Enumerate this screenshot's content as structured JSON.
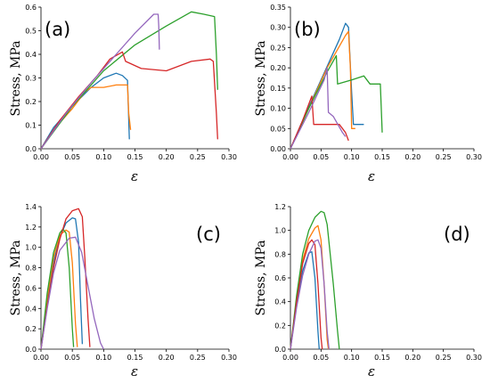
{
  "chart_data": [
    {
      "type": "line",
      "panel_label": "(a)",
      "xlabel": "ε",
      "ylabel": "Stress, MPa",
      "xlim": [
        0,
        0.3
      ],
      "ylim": [
        0,
        0.6
      ],
      "xticks": [
        "0.00",
        "0.05",
        "0.10",
        "0.15",
        "0.20",
        "0.25",
        "0.30"
      ],
      "yticks": [
        "0.0",
        "0.1",
        "0.2",
        "0.3",
        "0.4",
        "0.5",
        "0.6"
      ],
      "grid": false,
      "series": [
        {
          "color": "#1f77b4",
          "points": [
            [
              0,
              0
            ],
            [
              0.02,
              0.09
            ],
            [
              0.05,
              0.18
            ],
            [
              0.08,
              0.26
            ],
            [
              0.1,
              0.3
            ],
            [
              0.12,
              0.32
            ],
            [
              0.13,
              0.31
            ],
            [
              0.138,
              0.29
            ],
            [
              0.14,
              0.12
            ],
            [
              0.141,
              0.04
            ]
          ]
        },
        {
          "color": "#ff7f0e",
          "points": [
            [
              0,
              0
            ],
            [
              0.02,
              0.08
            ],
            [
              0.05,
              0.17
            ],
            [
              0.07,
              0.24
            ],
            [
              0.08,
              0.26
            ],
            [
              0.1,
              0.26
            ],
            [
              0.12,
              0.27
            ],
            [
              0.138,
              0.27
            ],
            [
              0.14,
              0.15
            ],
            [
              0.143,
              0.08
            ]
          ]
        },
        {
          "color": "#2ca02c",
          "points": [
            [
              0,
              0
            ],
            [
              0.05,
              0.18
            ],
            [
              0.1,
              0.33
            ],
            [
              0.15,
              0.44
            ],
            [
              0.2,
              0.52
            ],
            [
              0.24,
              0.58
            ],
            [
              0.26,
              0.57
            ],
            [
              0.277,
              0.56
            ],
            [
              0.28,
              0.4
            ],
            [
              0.282,
              0.25
            ]
          ]
        },
        {
          "color": "#d62728",
          "points": [
            [
              0,
              0
            ],
            [
              0.03,
              0.12
            ],
            [
              0.06,
              0.22
            ],
            [
              0.09,
              0.31
            ],
            [
              0.11,
              0.38
            ],
            [
              0.13,
              0.41
            ],
            [
              0.135,
              0.37
            ],
            [
              0.16,
              0.34
            ],
            [
              0.2,
              0.33
            ],
            [
              0.24,
              0.37
            ],
            [
              0.27,
              0.38
            ],
            [
              0.275,
              0.37
            ],
            [
              0.28,
              0.15
            ],
            [
              0.282,
              0.04
            ]
          ]
        },
        {
          "color": "#9467bd",
          "points": [
            [
              0,
              0
            ],
            [
              0.04,
              0.15
            ],
            [
              0.08,
              0.28
            ],
            [
              0.12,
              0.4
            ],
            [
              0.15,
              0.49
            ],
            [
              0.18,
              0.57
            ],
            [
              0.187,
              0.57
            ],
            [
              0.188,
              0.52
            ],
            [
              0.189,
              0.42
            ]
          ]
        }
      ]
    },
    {
      "type": "line",
      "panel_label": "(b)",
      "xlabel": "ε",
      "ylabel": "Stress, MPa",
      "xlim": [
        0,
        0.3
      ],
      "ylim": [
        0,
        0.35
      ],
      "xticks": [
        "0.00",
        "0.05",
        "0.10",
        "0.15",
        "0.20",
        "0.25",
        "0.30"
      ],
      "yticks": [
        "0.00",
        "0.05",
        "0.10",
        "0.15",
        "0.20",
        "0.25",
        "0.30",
        "0.35"
      ],
      "grid": false,
      "series": [
        {
          "color": "#1f77b4",
          "points": [
            [
              0,
              0
            ],
            [
              0.02,
              0.07
            ],
            [
              0.05,
              0.17
            ],
            [
              0.08,
              0.27
            ],
            [
              0.09,
              0.31
            ],
            [
              0.095,
              0.3
            ],
            [
              0.1,
              0.14
            ],
            [
              0.103,
              0.06
            ],
            [
              0.12,
              0.06
            ]
          ]
        },
        {
          "color": "#ff7f0e",
          "points": [
            [
              0,
              0
            ],
            [
              0.03,
              0.1
            ],
            [
              0.06,
              0.2
            ],
            [
              0.09,
              0.28
            ],
            [
              0.095,
              0.29
            ],
            [
              0.098,
              0.2
            ],
            [
              0.1,
              0.05
            ],
            [
              0.106,
              0.05
            ]
          ]
        },
        {
          "color": "#2ca02c",
          "points": [
            [
              0,
              0
            ],
            [
              0.03,
              0.1
            ],
            [
              0.06,
              0.19
            ],
            [
              0.075,
              0.23
            ],
            [
              0.077,
              0.16
            ],
            [
              0.1,
              0.17
            ],
            [
              0.12,
              0.18
            ],
            [
              0.13,
              0.16
            ],
            [
              0.147,
              0.16
            ],
            [
              0.15,
              0.04
            ]
          ]
        },
        {
          "color": "#d62728",
          "points": [
            [
              0,
              0
            ],
            [
              0.02,
              0.07
            ],
            [
              0.035,
              0.13
            ],
            [
              0.038,
              0.06
            ],
            [
              0.06,
              0.06
            ],
            [
              0.08,
              0.06
            ],
            [
              0.09,
              0.04
            ],
            [
              0.095,
              0.02
            ]
          ]
        },
        {
          "color": "#9467bd",
          "points": [
            [
              0,
              0
            ],
            [
              0.03,
              0.09
            ],
            [
              0.055,
              0.17
            ],
            [
              0.06,
              0.2
            ],
            [
              0.062,
              0.09
            ],
            [
              0.07,
              0.08
            ],
            [
              0.085,
              0.04
            ],
            [
              0.09,
              0.03
            ]
          ]
        }
      ]
    },
    {
      "type": "line",
      "panel_label": "(c)",
      "xlabel": "ε",
      "ylabel": "Stress, MPa",
      "xlim": [
        0,
        0.3
      ],
      "ylim": [
        0,
        1.4
      ],
      "xticks": [
        "0.00",
        "0.05",
        "0.10",
        "0.15",
        "0.20",
        "0.25",
        "0.30"
      ],
      "yticks": [
        "0.0",
        "0.2",
        "0.4",
        "0.6",
        "0.8",
        "1.0",
        "1.2",
        "1.4"
      ],
      "grid": false,
      "series": [
        {
          "color": "#1f77b4",
          "points": [
            [
              0,
              0
            ],
            [
              0.01,
              0.45
            ],
            [
              0.02,
              0.85
            ],
            [
              0.03,
              1.1
            ],
            [
              0.04,
              1.24
            ],
            [
              0.05,
              1.29
            ],
            [
              0.055,
              1.28
            ],
            [
              0.06,
              1.05
            ],
            [
              0.063,
              0.5
            ],
            [
              0.066,
              0.05
            ]
          ]
        },
        {
          "color": "#ff7f0e",
          "points": [
            [
              0,
              0
            ],
            [
              0.01,
              0.5
            ],
            [
              0.02,
              0.9
            ],
            [
              0.03,
              1.12
            ],
            [
              0.04,
              1.17
            ],
            [
              0.045,
              1.15
            ],
            [
              0.05,
              0.85
            ],
            [
              0.055,
              0.25
            ],
            [
              0.058,
              0.02
            ]
          ]
        },
        {
          "color": "#2ca02c",
          "points": [
            [
              0,
              0
            ],
            [
              0.01,
              0.55
            ],
            [
              0.02,
              0.95
            ],
            [
              0.03,
              1.14
            ],
            [
              0.035,
              1.18
            ],
            [
              0.04,
              1.14
            ],
            [
              0.045,
              0.8
            ],
            [
              0.05,
              0.2
            ],
            [
              0.052,
              0.02
            ]
          ]
        },
        {
          "color": "#d62728",
          "points": [
            [
              0,
              0
            ],
            [
              0.01,
              0.42
            ],
            [
              0.02,
              0.8
            ],
            [
              0.03,
              1.08
            ],
            [
              0.04,
              1.28
            ],
            [
              0.05,
              1.36
            ],
            [
              0.06,
              1.38
            ],
            [
              0.066,
              1.3
            ],
            [
              0.07,
              0.9
            ],
            [
              0.075,
              0.3
            ],
            [
              0.078,
              0.02
            ]
          ]
        },
        {
          "color": "#9467bd",
          "points": [
            [
              0,
              0
            ],
            [
              0.01,
              0.4
            ],
            [
              0.02,
              0.75
            ],
            [
              0.03,
              0.97
            ],
            [
              0.045,
              1.09
            ],
            [
              0.055,
              1.1
            ],
            [
              0.065,
              0.95
            ],
            [
              0.075,
              0.62
            ],
            [
              0.085,
              0.3
            ],
            [
              0.095,
              0.06
            ],
            [
              0.1,
              0.0
            ]
          ]
        }
      ]
    },
    {
      "type": "line",
      "panel_label": "(d)",
      "xlabel": "ε",
      "ylabel": "Stress, MPa",
      "xlim": [
        0,
        0.3
      ],
      "ylim": [
        0,
        1.2
      ],
      "xticks": [
        "0.00",
        "0.05",
        "0.10",
        "0.15",
        "0.20",
        "0.25",
        "0.30"
      ],
      "yticks": [
        "0.0",
        "0.2",
        "0.4",
        "0.6",
        "0.8",
        "1.0",
        "1.2"
      ],
      "grid": false,
      "series": [
        {
          "color": "#1f77b4",
          "points": [
            [
              0,
              0
            ],
            [
              0.01,
              0.38
            ],
            [
              0.02,
              0.66
            ],
            [
              0.03,
              0.81
            ],
            [
              0.035,
              0.82
            ],
            [
              0.04,
              0.6
            ],
            [
              0.045,
              0.15
            ],
            [
              0.047,
              0.0
            ]
          ]
        },
        {
          "color": "#ff7f0e",
          "points": [
            [
              0,
              0
            ],
            [
              0.01,
              0.42
            ],
            [
              0.02,
              0.75
            ],
            [
              0.03,
              0.93
            ],
            [
              0.04,
              1.02
            ],
            [
              0.045,
              1.04
            ],
            [
              0.05,
              0.92
            ],
            [
              0.055,
              0.55
            ],
            [
              0.06,
              0.08
            ],
            [
              0.062,
              0.0
            ]
          ]
        },
        {
          "color": "#2ca02c",
          "points": [
            [
              0,
              0
            ],
            [
              0.01,
              0.45
            ],
            [
              0.02,
              0.8
            ],
            [
              0.03,
              1.0
            ],
            [
              0.04,
              1.11
            ],
            [
              0.05,
              1.16
            ],
            [
              0.055,
              1.15
            ],
            [
              0.06,
              1.05
            ],
            [
              0.07,
              0.55
            ],
            [
              0.077,
              0.15
            ],
            [
              0.08,
              0.0
            ]
          ]
        },
        {
          "color": "#d62728",
          "points": [
            [
              0,
              0
            ],
            [
              0.01,
              0.4
            ],
            [
              0.02,
              0.72
            ],
            [
              0.03,
              0.89
            ],
            [
              0.035,
              0.92
            ],
            [
              0.04,
              0.88
            ],
            [
              0.045,
              0.55
            ],
            [
              0.05,
              0.1
            ],
            [
              0.052,
              0.0
            ]
          ]
        },
        {
          "color": "#9467bd",
          "points": [
            [
              0,
              0
            ],
            [
              0.01,
              0.35
            ],
            [
              0.02,
              0.62
            ],
            [
              0.03,
              0.8
            ],
            [
              0.04,
              0.91
            ],
            [
              0.045,
              0.92
            ],
            [
              0.05,
              0.85
            ],
            [
              0.055,
              0.55
            ],
            [
              0.06,
              0.15
            ],
            [
              0.063,
              0.0
            ]
          ]
        }
      ]
    }
  ]
}
